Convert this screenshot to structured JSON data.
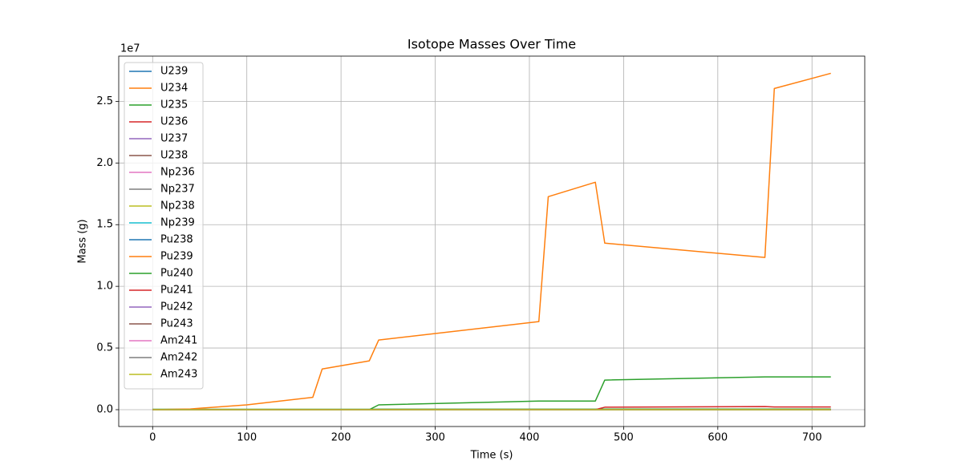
{
  "chart_data": {
    "type": "line",
    "title": "Isotope Masses Over Time",
    "x_label": "Time (s)",
    "y_label": "Mass (g)",
    "y_offset_label": "1e7",
    "x": [
      0,
      40,
      100,
      170,
      180,
      230,
      240,
      410,
      420,
      470,
      480,
      650,
      660,
      720
    ],
    "xlim": [
      -36,
      756
    ],
    "ylim": [
      -1365000,
      28665000
    ],
    "xticks": [
      0,
      100,
      200,
      300,
      400,
      500,
      600,
      700
    ],
    "yticks": [
      {
        "value": 0,
        "label": "0.0"
      },
      {
        "value": 5000000,
        "label": "0.5"
      },
      {
        "value": 10000000,
        "label": "1.0"
      },
      {
        "value": 15000000,
        "label": "1.5"
      },
      {
        "value": 20000000,
        "label": "2.0"
      },
      {
        "value": 25000000,
        "label": "2.5"
      }
    ],
    "grid": true,
    "legend": "upper left",
    "series": [
      {
        "name": "U239",
        "color": "#1f77b4",
        "values": [
          0,
          0,
          0,
          0,
          0,
          0,
          0,
          0,
          0,
          0,
          0,
          0,
          0,
          0
        ]
      },
      {
        "name": "U234",
        "color": "#ff7f0e",
        "values": [
          0,
          0,
          0,
          0,
          0,
          0,
          0,
          0,
          0,
          0,
          0,
          0,
          0,
          0
        ]
      },
      {
        "name": "U235",
        "color": "#2ca02c",
        "values": [
          30000,
          30000,
          30000,
          30000,
          30000,
          30000,
          40000,
          40000,
          40000,
          40000,
          50000,
          50000,
          50000,
          50000
        ]
      },
      {
        "name": "U236",
        "color": "#d62728",
        "values": [
          0,
          0,
          0,
          0,
          0,
          0,
          0,
          0,
          0,
          0,
          0,
          0,
          0,
          0
        ]
      },
      {
        "name": "U237",
        "color": "#9467bd",
        "values": [
          0,
          0,
          0,
          0,
          0,
          0,
          0,
          0,
          0,
          0,
          0,
          0,
          0,
          0
        ]
      },
      {
        "name": "U238",
        "color": "#8c564b",
        "values": [
          0,
          0,
          0,
          0,
          0,
          0,
          0,
          0,
          0,
          0,
          0,
          0,
          0,
          0
        ]
      },
      {
        "name": "Np236",
        "color": "#e377c2",
        "values": [
          0,
          0,
          0,
          0,
          0,
          0,
          0,
          0,
          0,
          0,
          0,
          0,
          0,
          0
        ]
      },
      {
        "name": "Np237",
        "color": "#7f7f7f",
        "values": [
          0,
          0,
          0,
          0,
          0,
          0,
          0,
          0,
          0,
          0,
          0,
          0,
          0,
          0
        ]
      },
      {
        "name": "Np238",
        "color": "#bcbd22",
        "values": [
          0,
          0,
          0,
          0,
          0,
          0,
          0,
          0,
          0,
          0,
          0,
          0,
          0,
          0
        ]
      },
      {
        "name": "Np239",
        "color": "#17becf",
        "values": [
          0,
          0,
          0,
          0,
          0,
          0,
          0,
          0,
          0,
          0,
          0,
          0,
          0,
          0
        ]
      },
      {
        "name": "Pu238",
        "color": "#1f77b4",
        "values": [
          0,
          0,
          0,
          0,
          0,
          0,
          0,
          0,
          0,
          0,
          0,
          0,
          0,
          0
        ]
      },
      {
        "name": "Pu239",
        "color": "#ff7f0e",
        "values": [
          0,
          60000,
          390000,
          1000000,
          3300000,
          3960000,
          5650000,
          7140000,
          17270000,
          18440000,
          13500000,
          12340000,
          26040000,
          27270000
        ]
      },
      {
        "name": "Pu240",
        "color": "#2ca02c",
        "values": [
          0,
          0,
          0,
          0,
          0,
          0,
          390000,
          700000,
          700000,
          700000,
          2400000,
          2660000,
          2660000,
          2660000
        ]
      },
      {
        "name": "Pu241",
        "color": "#d62728",
        "values": [
          0,
          0,
          0,
          0,
          0,
          0,
          0,
          0,
          0,
          0,
          200000,
          250000,
          220000,
          220000
        ]
      },
      {
        "name": "Pu242",
        "color": "#9467bd",
        "values": [
          0,
          0,
          0,
          0,
          0,
          0,
          0,
          0,
          0,
          0,
          0,
          0,
          0,
          0
        ]
      },
      {
        "name": "Pu243",
        "color": "#8c564b",
        "values": [
          0,
          0,
          0,
          0,
          0,
          0,
          0,
          0,
          0,
          0,
          0,
          0,
          0,
          0
        ]
      },
      {
        "name": "Am241",
        "color": "#e377c2",
        "values": [
          0,
          0,
          0,
          0,
          0,
          0,
          0,
          0,
          0,
          0,
          0,
          0,
          0,
          0
        ]
      },
      {
        "name": "Am242",
        "color": "#7f7f7f",
        "values": [
          0,
          0,
          0,
          0,
          0,
          0,
          0,
          0,
          0,
          0,
          0,
          0,
          0,
          0
        ]
      },
      {
        "name": "Am243",
        "color": "#bcbd22",
        "values": [
          0,
          0,
          0,
          0,
          0,
          0,
          0,
          0,
          0,
          0,
          0,
          0,
          0,
          0
        ]
      }
    ]
  }
}
